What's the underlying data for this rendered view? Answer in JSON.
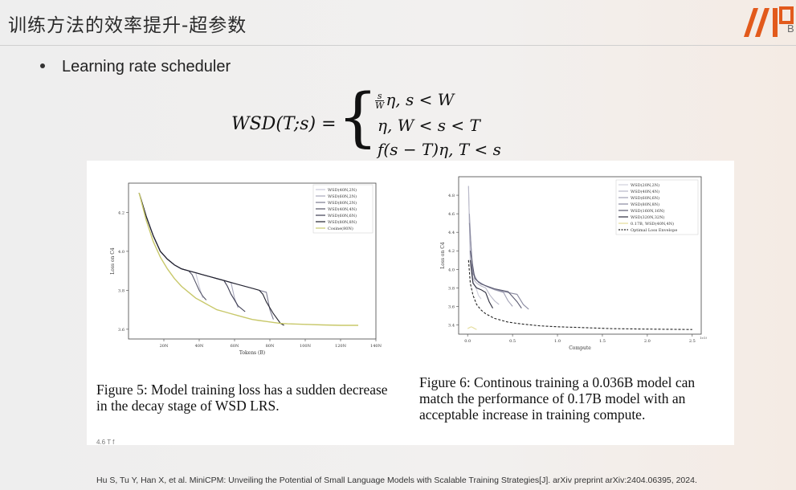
{
  "header": {
    "title": "训练方法的效率提升-超参数",
    "logo_sub": "B"
  },
  "bullet": {
    "text": "Learning rate scheduler"
  },
  "formula": {
    "lhs": "WSD(T;s) =",
    "case1_tail": "η,    s < W",
    "case1_num": "s",
    "case1_den": "W",
    "case2": "η,    W < s < T",
    "case3": "f(s − T)η,    T < s"
  },
  "figure5": {
    "caption": "Figure 5: Model training loss has a sudden decrease in the decay stage of WSD LRS."
  },
  "figure6": {
    "caption": "Figure 6: Continous training a 0.036B model can match the performance of 0.17B model with an acceptable increase in training compute."
  },
  "fragment": "4.6   T      f",
  "reference": "Hu S, Tu Y, Han X, et al. MiniCPM: Unveiling the Potential of Small Language Models with Scalable Training Strategies[J]. arXiv preprint arXiv:2404.06395, 2024.",
  "chart_data": [
    {
      "type": "line",
      "xlabel": "Tokens (B)",
      "ylabel": "Loss on C4",
      "xlim": [
        0,
        140
      ],
      "ylim": [
        3.55,
        4.35
      ],
      "xticks": [
        20,
        40,
        60,
        80,
        100,
        120,
        140
      ],
      "xtick_labels": [
        "20N",
        "40N",
        "60N",
        "80N",
        "100N",
        "120N",
        "140N"
      ],
      "yticks": [
        3.6,
        3.8,
        4.0,
        4.2
      ],
      "ytick_labels": [
        "3.6",
        "3.8",
        "4.0",
        "4.2"
      ],
      "legend_position": "top-right",
      "series": [
        {
          "name": "WSD(40N,2N)",
          "color": "#c8c8d8",
          "x": [
            6,
            10,
            14,
            18,
            22,
            26,
            30,
            34,
            38,
            40,
            42
          ],
          "y": [
            4.3,
            4.18,
            4.08,
            4.0,
            3.96,
            3.93,
            3.91,
            3.9,
            3.89,
            3.82,
            3.76
          ]
        },
        {
          "name": "WSD(60N,2N)",
          "color": "#a8a8bc",
          "x": [
            6,
            10,
            14,
            18,
            22,
            26,
            30,
            34,
            38,
            42,
            46,
            50,
            54,
            58,
            60,
            62
          ],
          "y": [
            4.3,
            4.18,
            4.08,
            4.0,
            3.96,
            3.93,
            3.91,
            3.9,
            3.89,
            3.88,
            3.87,
            3.86,
            3.85,
            3.84,
            3.76,
            3.71
          ]
        },
        {
          "name": "WSD(80N,2N)",
          "color": "#7a7a90",
          "x": [
            6,
            10,
            14,
            18,
            22,
            26,
            30,
            34,
            38,
            42,
            46,
            50,
            54,
            58,
            62,
            66,
            70,
            74,
            78,
            80,
            82
          ],
          "y": [
            4.3,
            4.18,
            4.08,
            4.0,
            3.96,
            3.93,
            3.91,
            3.9,
            3.89,
            3.88,
            3.87,
            3.86,
            3.85,
            3.84,
            3.83,
            3.82,
            3.81,
            3.8,
            3.79,
            3.7,
            3.65
          ]
        },
        {
          "name": "WSD(40N,4N)",
          "color": "#555568",
          "x": [
            6,
            10,
            14,
            18,
            22,
            26,
            30,
            34,
            36,
            38,
            40,
            42,
            44
          ],
          "y": [
            4.3,
            4.18,
            4.08,
            4.0,
            3.96,
            3.93,
            3.91,
            3.9,
            3.88,
            3.84,
            3.8,
            3.77,
            3.75
          ]
        },
        {
          "name": "WSD(60N,6N)",
          "color": "#3d3d52",
          "x": [
            6,
            10,
            14,
            18,
            22,
            26,
            30,
            34,
            38,
            42,
            46,
            50,
            54,
            56,
            58,
            62,
            66
          ],
          "y": [
            4.3,
            4.18,
            4.08,
            4.0,
            3.96,
            3.93,
            3.91,
            3.9,
            3.89,
            3.88,
            3.87,
            3.86,
            3.85,
            3.82,
            3.78,
            3.72,
            3.69
          ]
        },
        {
          "name": "WSD(80N,8N)",
          "color": "#22222e",
          "x": [
            6,
            10,
            14,
            18,
            22,
            26,
            30,
            34,
            38,
            42,
            46,
            50,
            54,
            58,
            62,
            66,
            70,
            74,
            76,
            78,
            82,
            86,
            88
          ],
          "y": [
            4.3,
            4.18,
            4.08,
            4.0,
            3.96,
            3.93,
            3.91,
            3.9,
            3.89,
            3.88,
            3.87,
            3.86,
            3.85,
            3.84,
            3.83,
            3.82,
            3.81,
            3.8,
            3.78,
            3.74,
            3.68,
            3.63,
            3.62
          ]
        },
        {
          "name": "Cosine(80N)",
          "color": "#c8c86a",
          "x": [
            6,
            10,
            14,
            18,
            22,
            26,
            30,
            34,
            38,
            42,
            46,
            50,
            54,
            58,
            62,
            66,
            70,
            74,
            78,
            82,
            86,
            90,
            100,
            110,
            120,
            130
          ],
          "y": [
            4.3,
            4.16,
            4.05,
            3.97,
            3.91,
            3.86,
            3.82,
            3.79,
            3.76,
            3.74,
            3.72,
            3.7,
            3.69,
            3.68,
            3.67,
            3.66,
            3.65,
            3.645,
            3.64,
            3.635,
            3.63,
            3.628,
            3.625,
            3.622,
            3.62,
            3.62
          ]
        }
      ]
    },
    {
      "type": "line",
      "xlabel": "Compute",
      "ylabel": "Loss on C4",
      "xlim": [
        -0.1,
        2.6
      ],
      "ylim": [
        3.3,
        5.0
      ],
      "xticks": [
        0.0,
        0.5,
        1.0,
        1.5,
        2.0,
        2.5
      ],
      "xtick_labels": [
        "0.0",
        "0.5",
        "1.0",
        "1.5",
        "2.0",
        "2.5"
      ],
      "yticks": [
        3.4,
        3.6,
        3.8,
        4.0,
        4.2,
        4.4,
        4.6,
        4.8
      ],
      "ytick_labels": [
        "3.4",
        "3.6",
        "3.8",
        "4.0",
        "4.2",
        "4.4",
        "4.6",
        "4.8"
      ],
      "scale_note": "1e18",
      "legend_position": "top-right",
      "series": [
        {
          "name": "WSD(20N,2N)",
          "color": "#d0d0dc",
          "x": [
            0.01,
            0.03,
            0.05,
            0.08,
            0.1,
            0.12,
            0.15
          ],
          "y": [
            4.9,
            4.1,
            3.9,
            3.82,
            3.78,
            3.72,
            3.68
          ]
        },
        {
          "name": "WSD(40N,4N)",
          "color": "#b8b8c8",
          "x": [
            0.01,
            0.03,
            0.06,
            0.1,
            0.15,
            0.2,
            0.25,
            0.3,
            0.35
          ],
          "y": [
            4.9,
            4.1,
            3.9,
            3.85,
            3.82,
            3.8,
            3.72,
            3.66,
            3.62
          ]
        },
        {
          "name": "WSD(60N,6N)",
          "color": "#a0a0b4",
          "x": [
            0.02,
            0.05,
            0.1,
            0.2,
            0.3,
            0.4,
            0.45,
            0.5
          ],
          "y": [
            4.6,
            4.0,
            3.88,
            3.82,
            3.78,
            3.75,
            3.66,
            3.6
          ]
        },
        {
          "name": "WSD(80N,8N)",
          "color": "#8a8aa0",
          "x": [
            0.02,
            0.06,
            0.12,
            0.25,
            0.4,
            0.55,
            0.62,
            0.68
          ],
          "y": [
            4.5,
            3.95,
            3.86,
            3.8,
            3.76,
            3.73,
            3.62,
            3.57
          ]
        },
        {
          "name": "WSD(160N,16N)",
          "color": "#5a5a70",
          "x": [
            0.03,
            0.08,
            0.15,
            0.3,
            0.45,
            0.55,
            0.6
          ],
          "y": [
            4.2,
            3.9,
            3.84,
            3.79,
            3.76,
            3.65,
            3.58
          ]
        },
        {
          "name": "WSD(320N,32N)",
          "color": "#2c2c3c",
          "x": [
            0.03,
            0.06,
            0.1,
            0.15,
            0.2,
            0.24,
            0.28
          ],
          "y": [
            4.1,
            3.85,
            3.8,
            3.78,
            3.75,
            3.65,
            3.58
          ]
        },
        {
          "name": "0.17B, WSD(40N,4N)",
          "color": "#e4dc9a",
          "x": [
            0.0,
            0.02,
            0.04,
            0.06,
            0.08,
            0.1
          ],
          "y": [
            3.36,
            3.37,
            3.38,
            3.37,
            3.36,
            3.35
          ]
        },
        {
          "name": "Optimal Loss Envelope",
          "color": "#222222",
          "dash": true,
          "x": [
            0.01,
            0.03,
            0.06,
            0.1,
            0.15,
            0.2,
            0.3,
            0.45,
            0.6,
            0.8,
            1.0,
            1.3,
            1.6,
            2.0,
            2.5
          ],
          "y": [
            4.1,
            3.85,
            3.72,
            3.62,
            3.56,
            3.52,
            3.47,
            3.43,
            3.41,
            3.39,
            3.38,
            3.37,
            3.36,
            3.355,
            3.35
          ]
        }
      ]
    }
  ]
}
